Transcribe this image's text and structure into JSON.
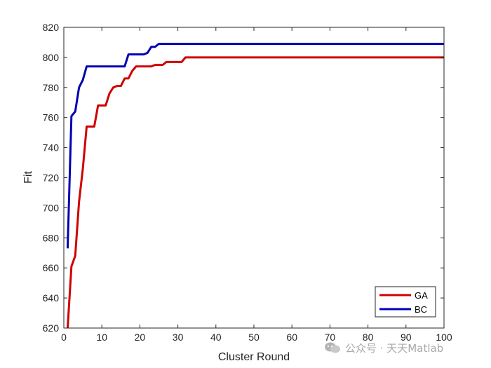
{
  "chart_data": {
    "type": "line",
    "xlabel": "Cluster Round",
    "ylabel": "Fit",
    "xlim": [
      0,
      100
    ],
    "ylim": [
      620,
      820
    ],
    "xticks": [
      0,
      10,
      20,
      30,
      40,
      50,
      60,
      70,
      80,
      90,
      100
    ],
    "yticks": [
      620,
      640,
      660,
      680,
      700,
      720,
      740,
      760,
      780,
      800,
      820
    ],
    "grid": false,
    "legend_position": "bottom-right",
    "series": [
      {
        "name": "GA",
        "color": "#d00000",
        "x": [
          1,
          2,
          3,
          4,
          5,
          6,
          7,
          8,
          9,
          10,
          11,
          12,
          13,
          14,
          15,
          16,
          17,
          18,
          19,
          20,
          21,
          22,
          23,
          24,
          25,
          26,
          27,
          28,
          29,
          30,
          31,
          32,
          33,
          100
        ],
        "y": [
          620,
          661,
          668,
          704,
          726,
          754,
          754,
          754,
          768,
          768,
          768,
          776,
          780,
          781,
          781,
          786,
          786,
          791,
          794,
          794,
          794,
          794,
          794,
          795,
          795,
          795,
          797,
          797,
          797,
          797,
          797,
          800,
          800,
          800
        ]
      },
      {
        "name": "BC",
        "color": "#0000b4",
        "x": [
          1,
          2,
          3,
          4,
          5,
          6,
          7,
          8,
          9,
          10,
          11,
          12,
          13,
          14,
          15,
          16,
          17,
          18,
          19,
          20,
          21,
          22,
          23,
          24,
          25,
          26,
          100
        ],
        "y": [
          673,
          761,
          764,
          780,
          785,
          794,
          794,
          794,
          794,
          794,
          794,
          794,
          794,
          794,
          794,
          794,
          802,
          802,
          802,
          802,
          802,
          803,
          807,
          807,
          809,
          809,
          809
        ]
      }
    ]
  },
  "watermark": {
    "text": "公众号 · 天天Matlab",
    "icon": "wechat-icon"
  }
}
